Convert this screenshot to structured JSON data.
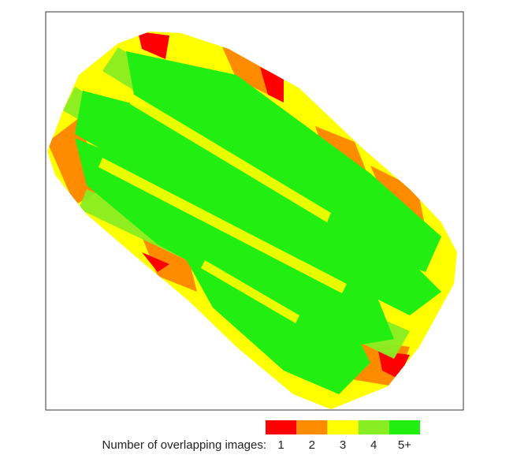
{
  "legend": {
    "title": "Number of overlapping images:",
    "items": [
      {
        "label": "1",
        "color": "#ff0000"
      },
      {
        "label": "2",
        "color": "#ff8c00"
      },
      {
        "label": "3",
        "color": "#ffff00"
      },
      {
        "label": "4",
        "color": "#88ee22"
      },
      {
        "label": "5+",
        "color": "#22ee11"
      }
    ]
  }
}
